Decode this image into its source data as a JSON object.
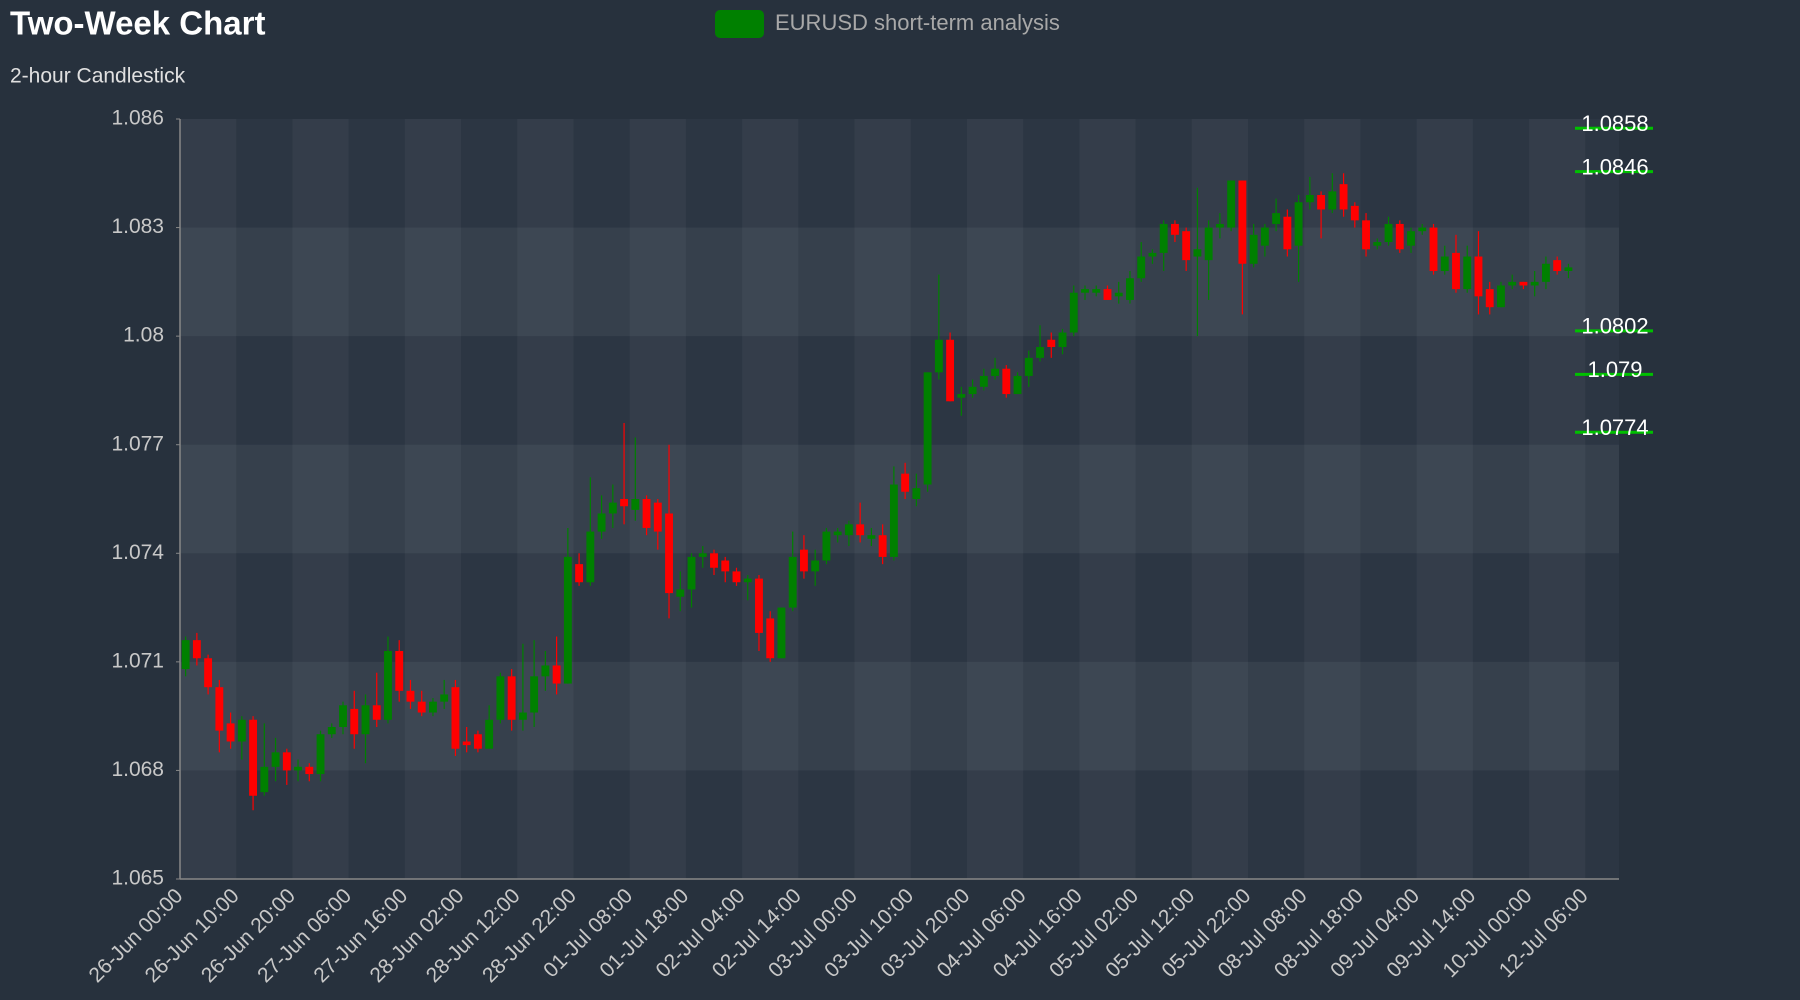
{
  "chart_data": {
    "type": "candlestick",
    "title": "Two-Week Chart",
    "subtitle": "2-hour Candlestick",
    "categories": [
      "26-Jun 00:00",
      null,
      null,
      null,
      null,
      "26-Jun 10:00",
      null,
      null,
      null,
      null,
      "26-Jun 20:00",
      null,
      null,
      null,
      null,
      "27-Jun 06:00",
      null,
      null,
      null,
      null,
      "27-Jun 16:00",
      null,
      null,
      null,
      null,
      "28-Jun 02:00",
      null,
      null,
      null,
      null,
      "28-Jun 12:00",
      null,
      null,
      null,
      null,
      "28-Jun 22:00",
      null,
      null,
      null,
      null,
      "01-Jul 08:00",
      null,
      null,
      null,
      null,
      "01-Jul 18:00",
      null,
      null,
      null,
      null,
      "02-Jul 04:00",
      null,
      null,
      null,
      null,
      "02-Jul 14:00",
      null,
      null,
      null,
      null,
      "03-Jul 00:00",
      null,
      null,
      null,
      null,
      "03-Jul 10:00",
      null,
      null,
      null,
      null,
      "03-Jul 20:00",
      null,
      null,
      null,
      null,
      "04-Jul 06:00",
      null,
      null,
      null,
      null,
      "04-Jul 16:00",
      null,
      null,
      null,
      null,
      "05-Jul 02:00",
      null,
      null,
      null,
      null,
      "05-Jul 12:00",
      null,
      null,
      null,
      null,
      "05-Jul 22:00",
      null,
      null,
      null,
      null,
      "08-Jul 08:00",
      null,
      null,
      null,
      null,
      "08-Jul 18:00",
      null,
      null,
      null,
      null,
      "09-Jul 04:00",
      null,
      null,
      null,
      null,
      "09-Jul 14:00",
      null,
      null,
      null,
      null,
      "10-Jul 00:00",
      null,
      null,
      null,
      null,
      "12-Jul 06:00"
    ],
    "series": [
      {
        "name": "EURUSD short-term analysis",
        "color": "#008000",
        "up_color": "#008000",
        "down_color": "#ff0000",
        "ohlc": [
          [
            1.0708,
            1.0717,
            1.0706,
            1.0716
          ],
          [
            1.0716,
            1.0718,
            1.0709,
            1.0711
          ],
          [
            1.0711,
            1.0712,
            1.0701,
            1.0703
          ],
          [
            1.0703,
            1.0705,
            1.0685,
            1.0691
          ],
          [
            1.0693,
            1.0696,
            1.0686,
            1.0688
          ],
          [
            1.0688,
            1.0695,
            1.0683,
            1.0694
          ],
          [
            1.0694,
            1.0695,
            1.0669,
            1.0673
          ],
          [
            1.0674,
            1.0693,
            1.0673,
            1.0681
          ],
          [
            1.0681,
            1.0689,
            1.0677,
            1.0685
          ],
          [
            1.0685,
            1.0686,
            1.0676,
            1.068
          ],
          [
            1.068,
            1.0683,
            1.0677,
            1.0681
          ],
          [
            1.0681,
            1.0682,
            1.0677,
            1.0679
          ],
          [
            1.0679,
            1.0691,
            1.0677,
            1.069
          ],
          [
            1.069,
            1.0693,
            1.0689,
            1.0692
          ],
          [
            1.0692,
            1.0699,
            1.069,
            1.0698
          ],
          [
            1.0697,
            1.0702,
            1.0686,
            1.069
          ],
          [
            1.069,
            1.0701,
            1.0682,
            1.0698
          ],
          [
            1.0698,
            1.0707,
            1.0692,
            1.0694
          ],
          [
            1.0694,
            1.0717,
            1.0693,
            1.0713
          ],
          [
            1.0713,
            1.0716,
            1.0699,
            1.0702
          ],
          [
            1.0702,
            1.0705,
            1.0697,
            1.0699
          ],
          [
            1.0699,
            1.0702,
            1.0695,
            1.0696
          ],
          [
            1.0696,
            1.07,
            1.0695,
            1.0699
          ],
          [
            1.0699,
            1.0705,
            1.0697,
            1.0701
          ],
          [
            1.0703,
            1.0705,
            1.0684,
            1.0686
          ],
          [
            1.0688,
            1.0692,
            1.0685,
            1.0687
          ],
          [
            1.069,
            1.0691,
            1.0685,
            1.0686
          ],
          [
            1.0686,
            1.0698,
            1.0686,
            1.0694
          ],
          [
            1.0694,
            1.0707,
            1.0693,
            1.0706
          ],
          [
            1.0706,
            1.0708,
            1.0691,
            1.0694
          ],
          [
            1.0694,
            1.0715,
            1.0691,
            1.0696
          ],
          [
            1.0696,
            1.0716,
            1.0692,
            1.0706
          ],
          [
            1.0706,
            1.0713,
            1.0702,
            1.0709
          ],
          [
            1.0709,
            1.0717,
            1.0701,
            1.0704
          ],
          [
            1.0704,
            1.0747,
            1.0704,
            1.0739
          ],
          [
            1.0737,
            1.074,
            1.0731,
            1.0732
          ],
          [
            1.0732,
            1.0761,
            1.0731,
            1.0746
          ],
          [
            1.0746,
            1.0756,
            1.0744,
            1.0751
          ],
          [
            1.0751,
            1.0759,
            1.0747,
            1.0754
          ],
          [
            1.0755,
            1.0776,
            1.0748,
            1.0753
          ],
          [
            1.0752,
            1.0772,
            1.0749,
            1.0755
          ],
          [
            1.0755,
            1.0756,
            1.0745,
            1.0747
          ],
          [
            1.0754,
            1.0755,
            1.0741,
            1.0746
          ],
          [
            1.0751,
            1.077,
            1.0722,
            1.0729
          ],
          [
            1.0728,
            1.0735,
            1.0724,
            1.073
          ],
          [
            1.073,
            1.074,
            1.0725,
            1.0739
          ],
          [
            1.0739,
            1.0742,
            1.0736,
            1.074
          ],
          [
            1.074,
            1.0741,
            1.0734,
            1.0736
          ],
          [
            1.0738,
            1.0739,
            1.0732,
            1.0735
          ],
          [
            1.0735,
            1.0736,
            1.0731,
            1.0732
          ],
          [
            1.0732,
            1.0734,
            1.0727,
            1.0733
          ],
          [
            1.0733,
            1.0734,
            1.0713,
            1.0718
          ],
          [
            1.0722,
            1.0724,
            1.071,
            1.0711
          ],
          [
            1.0711,
            1.0725,
            1.0711,
            1.0725
          ],
          [
            1.0725,
            1.0746,
            1.0724,
            1.0739
          ],
          [
            1.0741,
            1.0745,
            1.0733,
            1.0735
          ],
          [
            1.0735,
            1.0741,
            1.0731,
            1.0738
          ],
          [
            1.0738,
            1.0747,
            1.0737,
            1.0746
          ],
          [
            1.0745,
            1.0747,
            1.0743,
            1.0746
          ],
          [
            1.0745,
            1.0749,
            1.0742,
            1.0748
          ],
          [
            1.0748,
            1.0754,
            1.0743,
            1.0745
          ],
          [
            1.0744,
            1.0747,
            1.0742,
            1.0745
          ],
          [
            1.0745,
            1.0748,
            1.0737,
            1.0739
          ],
          [
            1.0739,
            1.0764,
            1.0738,
            1.0759
          ],
          [
            1.0762,
            1.0765,
            1.0755,
            1.0757
          ],
          [
            1.0755,
            1.0762,
            1.0753,
            1.0758
          ],
          [
            1.0759,
            1.079,
            1.0757,
            1.079
          ],
          [
            1.079,
            1.0817,
            1.0788,
            1.0799
          ],
          [
            1.0799,
            1.0801,
            1.0782,
            1.0782
          ],
          [
            1.0783,
            1.0786,
            1.0778,
            1.0784
          ],
          [
            1.0784,
            1.0788,
            1.0783,
            1.0786
          ],
          [
            1.0786,
            1.0791,
            1.0785,
            1.0789
          ],
          [
            1.0789,
            1.0794,
            1.0788,
            1.0791
          ],
          [
            1.0791,
            1.0792,
            1.0783,
            1.0784
          ],
          [
            1.0784,
            1.079,
            1.0784,
            1.0789
          ],
          [
            1.0789,
            1.0796,
            1.0786,
            1.0794
          ],
          [
            1.0794,
            1.0803,
            1.0793,
            1.0797
          ],
          [
            1.0799,
            1.0801,
            1.0794,
            1.0797
          ],
          [
            1.0797,
            1.0802,
            1.0795,
            1.0801
          ],
          [
            1.0801,
            1.0814,
            1.08,
            1.0812
          ],
          [
            1.0812,
            1.0814,
            1.081,
            1.0813
          ],
          [
            1.0812,
            1.0814,
            1.0811,
            1.0813
          ],
          [
            1.0813,
            1.0814,
            1.081,
            1.081
          ],
          [
            1.0811,
            1.0815,
            1.0809,
            1.0812
          ],
          [
            1.081,
            1.0818,
            1.0809,
            1.0816
          ],
          [
            1.0816,
            1.0826,
            1.0815,
            1.0822
          ],
          [
            1.0822,
            1.0824,
            1.082,
            1.0823
          ],
          [
            1.0823,
            1.0832,
            1.0818,
            1.0831
          ],
          [
            1.0831,
            1.0832,
            1.0826,
            1.0828
          ],
          [
            1.0829,
            1.083,
            1.0818,
            1.0821
          ],
          [
            1.0822,
            1.0841,
            1.08,
            1.0824
          ],
          [
            1.0821,
            1.0832,
            1.081,
            1.083
          ],
          [
            1.083,
            1.0834,
            1.0827,
            1.0831
          ],
          [
            1.083,
            1.0843,
            1.0829,
            1.0843
          ],
          [
            1.0843,
            1.0843,
            1.0806,
            1.082
          ],
          [
            1.082,
            1.0831,
            1.0819,
            1.0828
          ],
          [
            1.0825,
            1.0831,
            1.0822,
            1.083
          ],
          [
            1.0831,
            1.0838,
            1.0829,
            1.0834
          ],
          [
            1.0833,
            1.0835,
            1.0822,
            1.0824
          ],
          [
            1.0825,
            1.0839,
            1.0815,
            1.0837
          ],
          [
            1.0837,
            1.0844,
            1.0835,
            1.0839
          ],
          [
            1.0839,
            1.084,
            1.0827,
            1.0835
          ],
          [
            1.0835,
            1.0845,
            1.0834,
            1.084
          ],
          [
            1.0842,
            1.0845,
            1.0833,
            1.0835
          ],
          [
            1.0836,
            1.0837,
            1.083,
            1.0832
          ],
          [
            1.0832,
            1.0834,
            1.0822,
            1.0824
          ],
          [
            1.0825,
            1.0827,
            1.0824,
            1.0826
          ],
          [
            1.0826,
            1.0833,
            1.0825,
            1.0831
          ],
          [
            1.0831,
            1.0832,
            1.0823,
            1.0824
          ],
          [
            1.0825,
            1.083,
            1.0823,
            1.0829
          ],
          [
            1.0829,
            1.0831,
            1.0828,
            1.083
          ],
          [
            1.083,
            1.0831,
            1.0817,
            1.0818
          ],
          [
            1.0818,
            1.0825,
            1.0817,
            1.0822
          ],
          [
            1.0823,
            1.0828,
            1.0812,
            1.0813
          ],
          [
            1.0813,
            1.0825,
            1.0812,
            1.0822
          ],
          [
            1.0822,
            1.0829,
            1.0806,
            1.0811
          ],
          [
            1.0813,
            1.0815,
            1.0806,
            1.0808
          ],
          [
            1.0808,
            1.0815,
            1.0808,
            1.0814
          ],
          [
            1.0814,
            1.0817,
            1.0813,
            1.0815
          ],
          [
            1.0815,
            1.0815,
            1.0813,
            1.0814
          ],
          [
            1.0814,
            1.0818,
            1.0811,
            1.0815
          ],
          [
            1.0815,
            1.0822,
            1.0813,
            1.082
          ],
          [
            1.0821,
            1.0822,
            1.0817,
            1.0818
          ],
          [
            1.0818,
            1.082,
            1.0816,
            1.0819
          ],
          null,
          null
        ]
      }
    ],
    "levels": [
      1.0858,
      1.0846,
      1.0802,
      1.079,
      1.0774
    ],
    "level_color": "#00c000",
    "ylim": [
      1.065,
      1.086
    ],
    "yticks": [
      1.065,
      1.068,
      1.071,
      1.074,
      1.077,
      1.08,
      1.083,
      1.086
    ],
    "grid": true
  }
}
